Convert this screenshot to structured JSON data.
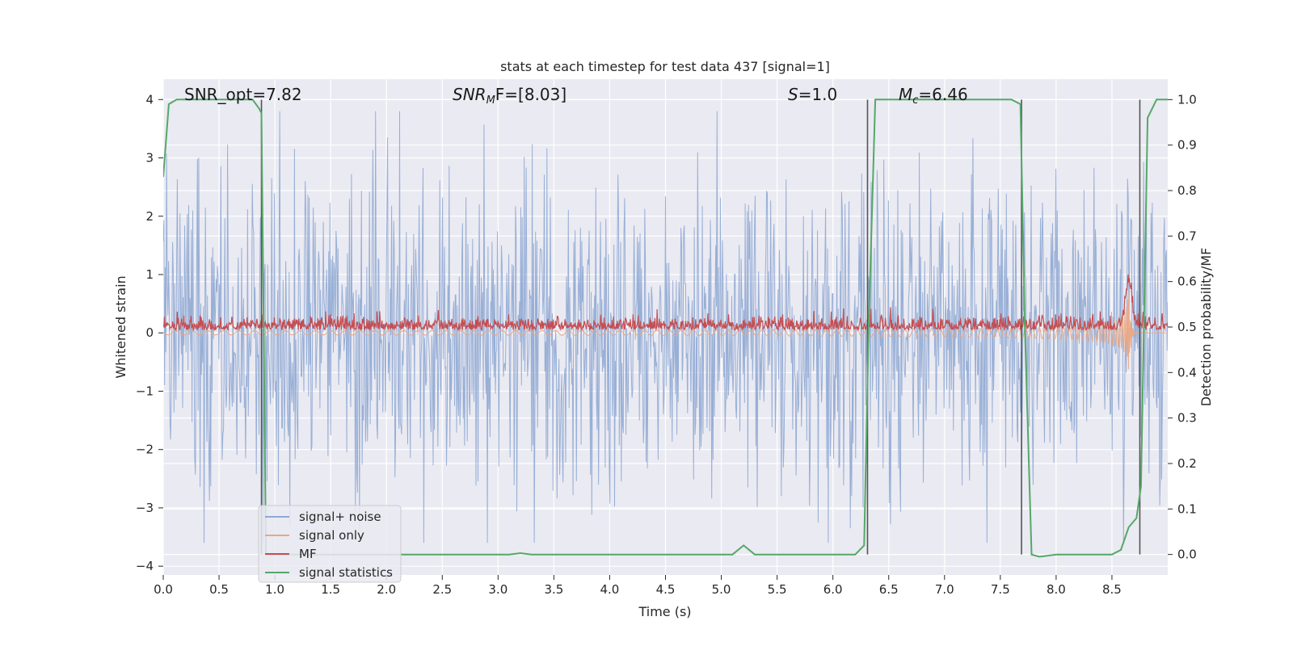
{
  "chart_data": {
    "type": "line",
    "title": "stats at each timestep for test data 437 [signal=1]",
    "xlabel": "Time (s)",
    "ylabel": "Whitened strain",
    "y2label": "Detection probability/MF",
    "xlim": [
      0.0,
      9.0
    ],
    "ylim": [
      -4.15,
      4.35
    ],
    "y2lim": [
      -0.045,
      1.045
    ],
    "xticks": [
      "0.0",
      "0.5",
      "1.0",
      "1.5",
      "2.0",
      "2.5",
      "3.0",
      "3.5",
      "4.0",
      "4.5",
      "5.0",
      "5.5",
      "6.0",
      "6.5",
      "7.0",
      "7.5",
      "8.0",
      "8.5"
    ],
    "yticks": [
      "4",
      "3",
      "2",
      "1",
      "0",
      "−1",
      "−2",
      "−3",
      "−4"
    ],
    "y2ticks": [
      "1.0",
      "0.9",
      "0.8",
      "0.7",
      "0.6",
      "0.5",
      "0.4",
      "0.3",
      "0.2",
      "0.1",
      "0.0"
    ],
    "grid": true,
    "legend_position": "lower-left",
    "annotations": {
      "snr_opt": "SNR_opt=7.82",
      "snr_mf_italic": "SNR",
      "snr_mf_sub": "M",
      "snr_mf_rest": "F=[8.03]",
      "s_italic": "S",
      "s_rest": "=1.0",
      "mc_italic": "M",
      "mc_sub": "c",
      "mc_rest": "=6.46"
    },
    "vertical_markers": [
      0.88,
      6.31,
      7.69,
      8.75
    ],
    "series": [
      {
        "name": "signal+ noise",
        "color": "#8fa8d3",
        "kind": "noise",
        "amplitude_range": [
          -3.6,
          3.8
        ]
      },
      {
        "name": "signal only",
        "color": "#e9a783",
        "kind": "chirp",
        "t_end": 8.65,
        "peak": 1.0
      },
      {
        "name": "MF",
        "color": "#c44e52",
        "kind": "mf",
        "range": [
          0.0,
          0.5
        ],
        "peak": [
          8.65,
          1.0
        ]
      },
      {
        "name": "signal statistics",
        "color": "#55a868",
        "axis": "right",
        "x": [
          0.0,
          0.05,
          0.12,
          0.8,
          0.86,
          0.88,
          0.9,
          0.92,
          0.95,
          1.0,
          3.1,
          3.2,
          3.3,
          5.1,
          5.2,
          5.3,
          6.2,
          6.28,
          6.32,
          6.38,
          7.6,
          7.68,
          7.72,
          7.78,
          7.85,
          8.0,
          8.5,
          8.58,
          8.65,
          8.72,
          8.76,
          8.82,
          8.9,
          9.0
        ],
        "values": [
          0.83,
          0.99,
          1.0,
          1.0,
          0.98,
          0.97,
          0.5,
          0.0,
          0.0,
          0.0,
          0.0,
          0.003,
          0.0,
          0.0,
          0.02,
          0.0,
          0.0,
          0.02,
          0.5,
          1.0,
          1.0,
          0.99,
          0.5,
          0.0,
          -0.005,
          0.0,
          0.0,
          0.01,
          0.06,
          0.08,
          0.15,
          0.96,
          1.0,
          1.0
        ]
      }
    ]
  }
}
